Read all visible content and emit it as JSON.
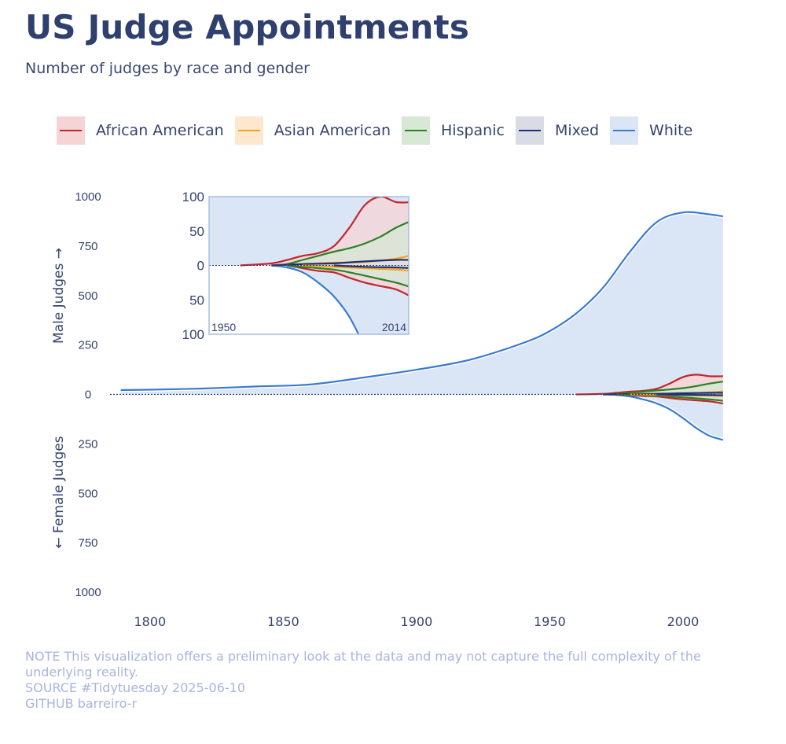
{
  "header": {
    "title": "US Judge Appointments",
    "subtitle": "Number of judges by race and gender"
  },
  "legend": [
    {
      "label": "African American",
      "color": "#c0272d",
      "fill": "#f6d3d5"
    },
    {
      "label": "Asian American",
      "color": "#f2a21c",
      "fill": "#fde8cf"
    },
    {
      "label": "Hispanic",
      "color": "#2a8224",
      "fill": "#d7e8d4"
    },
    {
      "label": "Mixed",
      "color": "#1f2f78",
      "fill": "#d9dbe5"
    },
    {
      "label": "White",
      "color": "#3a7bd0",
      "fill": "#dae5f6"
    }
  ],
  "chart_data": {
    "type": "area",
    "xlim": [
      1785,
      2018
    ],
    "ylim": [
      -1000,
      1000
    ],
    "x_ticks": [
      1800,
      1850,
      1900,
      1950,
      2000
    ],
    "y_ticks": [
      {
        "value": 1000,
        "label": "1000"
      },
      {
        "value": 750,
        "label": "750"
      },
      {
        "value": 500,
        "label": "500"
      },
      {
        "value": 250,
        "label": "250"
      },
      {
        "value": 0,
        "label": "0"
      },
      {
        "value": -250,
        "label": "250"
      },
      {
        "value": -500,
        "label": "500"
      },
      {
        "value": -750,
        "label": "750"
      },
      {
        "value": -1000,
        "label": "1000"
      }
    ],
    "ylabel_top": "Male Judges →",
    "ylabel_bottom": "← Female Judges",
    "series": [
      {
        "name": "White",
        "gender": "male",
        "x": [
          1789,
          1800,
          1820,
          1840,
          1860,
          1880,
          1900,
          1920,
          1940,
          1950,
          1960,
          1970,
          1980,
          1990,
          2000,
          2010,
          2015
        ],
        "values": [
          22,
          24,
          30,
          40,
          50,
          85,
          125,
          175,
          260,
          320,
          410,
          540,
          720,
          870,
          920,
          910,
          900
        ]
      },
      {
        "name": "White",
        "gender": "female",
        "x": [
          1970,
          1975,
          1980,
          1985,
          1990,
          1995,
          2000,
          2005,
          2010,
          2015
        ],
        "values": [
          0,
          -3,
          -10,
          -25,
          -45,
          -75,
          -120,
          -170,
          -210,
          -230
        ]
      },
      {
        "name": "African American",
        "gender": "male",
        "x": [
          1960,
          1970,
          1975,
          1980,
          1985,
          1990,
          1995,
          2000,
          2005,
          2010,
          2015
        ],
        "values": [
          0,
          3,
          8,
          14,
          18,
          28,
          55,
          88,
          100,
          92,
          92
        ]
      },
      {
        "name": "Hispanic",
        "gender": "male",
        "x": [
          1970,
          1975,
          1980,
          1985,
          1990,
          1995,
          2000,
          2005,
          2010,
          2015
        ],
        "values": [
          0,
          2,
          8,
          14,
          20,
          25,
          32,
          42,
          55,
          65
        ]
      },
      {
        "name": "Asian American",
        "gender": "male",
        "x": [
          1970,
          1980,
          1990,
          2000,
          2010,
          2015
        ],
        "values": [
          0,
          2,
          4,
          5,
          10,
          15
        ]
      },
      {
        "name": "Mixed",
        "gender": "male",
        "x": [
          1970,
          1980,
          1990,
          2000,
          2010,
          2015
        ],
        "values": [
          0,
          2,
          3,
          6,
          8,
          8
        ]
      },
      {
        "name": "African American",
        "gender": "female",
        "x": [
          1975,
          1980,
          1985,
          1990,
          1995,
          2000,
          2005,
          2010,
          2015
        ],
        "values": [
          0,
          -4,
          -8,
          -10,
          -18,
          -25,
          -30,
          -35,
          -46
        ]
      },
      {
        "name": "Hispanic",
        "gender": "female",
        "x": [
          1975,
          1980,
          1985,
          1990,
          1995,
          2000,
          2005,
          2010,
          2015
        ],
        "values": [
          0,
          -2,
          -4,
          -6,
          -10,
          -15,
          -20,
          -25,
          -32
        ]
      },
      {
        "name": "Asian American",
        "gender": "female",
        "x": [
          1980,
          1990,
          2000,
          2010,
          2015
        ],
        "values": [
          0,
          -2,
          -4,
          -6,
          -8
        ]
      },
      {
        "name": "Mixed",
        "gender": "female",
        "x": [
          1990,
          2000,
          2010,
          2015
        ],
        "values": [
          0,
          -2,
          -3,
          -4
        ]
      }
    ],
    "inset": {
      "xlim": [
        1950,
        2014
      ],
      "ylim": [
        -100,
        100
      ],
      "x_labels": [
        "1950",
        "2014"
      ],
      "y_ticks": [
        {
          "value": 100,
          "label": "100"
        },
        {
          "value": 50,
          "label": "50"
        },
        {
          "value": 0,
          "label": "0"
        },
        {
          "value": -50,
          "label": "50"
        },
        {
          "value": -100,
          "label": "100"
        }
      ]
    }
  },
  "footer": {
    "note": "NOTE This visualization offers a preliminary look at the data and may not capture the full complexity of the underlying reality.",
    "source": "SOURCE #Tidytuesday 2025-06-10",
    "github": "GITHUB barreiro-r"
  }
}
